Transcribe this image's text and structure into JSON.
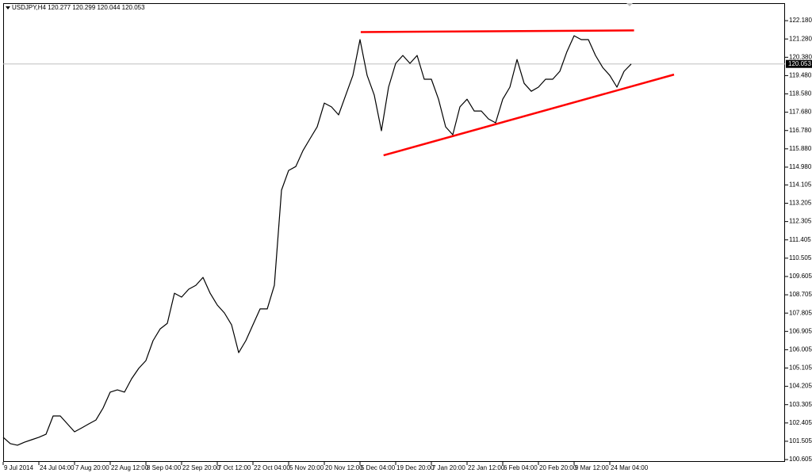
{
  "chart_data": {
    "type": "line",
    "title": "USDJPY,H4 120.277 120.299 120.044 120.053",
    "categories": [
      "9 Jul 2014",
      null,
      null,
      null,
      null,
      "24 Jul 04:00",
      null,
      null,
      null,
      null,
      "7 Aug 20:00",
      null,
      null,
      null,
      null,
      "22 Aug 12:00",
      null,
      null,
      null,
      null,
      "8 Sep 04:00",
      null,
      null,
      null,
      null,
      "22 Sep 20:00",
      null,
      null,
      null,
      null,
      "7 Oct 12:00",
      null,
      null,
      null,
      null,
      "22 Oct 04:00",
      null,
      null,
      null,
      null,
      "5 Nov 20:00",
      null,
      null,
      null,
      null,
      "20 Nov 12:00",
      null,
      null,
      null,
      null,
      "5 Dec 04:00",
      null,
      null,
      null,
      null,
      "19 Dec 20:00",
      null,
      null,
      null,
      null,
      "7 Jan 20:00",
      null,
      null,
      null,
      null,
      "22 Jan 12:00",
      null,
      null,
      null,
      null,
      "6 Feb 04:00",
      null,
      null,
      null,
      null,
      "20 Feb 20:00",
      null,
      null,
      null,
      null,
      "9 Mar 12:00",
      null,
      null,
      null,
      null,
      "24 Mar 04:00",
      null,
      null,
      null
    ],
    "series": [
      {
        "name": "USDJPY,H4",
        "color": "#000000",
        "values": [
          101.7,
          101.39,
          101.31,
          101.46,
          101.58,
          101.7,
          101.85,
          102.75,
          102.75,
          102.36,
          101.97,
          102.16,
          102.36,
          102.55,
          103.14,
          103.92,
          104.03,
          103.92,
          104.58,
          105.09,
          105.47,
          106.45,
          107.03,
          107.3,
          108.78,
          108.59,
          108.98,
          109.17,
          109.56,
          108.78,
          108.2,
          107.81,
          107.23,
          105.86,
          106.45,
          107.23,
          108.01,
          108.01,
          109.17,
          113.85,
          114.82,
          115.01,
          115.79,
          116.38,
          116.96,
          118.13,
          117.94,
          117.55,
          118.52,
          119.49,
          121.25,
          119.49,
          118.52,
          116.77,
          118.91,
          120.08,
          120.47,
          120.08,
          120.47,
          119.3,
          119.3,
          118.32,
          116.96,
          116.57,
          117.94,
          118.32,
          117.74,
          117.74,
          117.35,
          117.16,
          118.32,
          118.91,
          120.27,
          119.1,
          118.71,
          118.91,
          119.3,
          119.3,
          119.69,
          120.66,
          121.44,
          121.25,
          121.25,
          120.47,
          119.88,
          119.49,
          118.91,
          119.69,
          120.05
        ]
      }
    ],
    "ylim": [
      100.49,
      123.04
    ],
    "yticks": [
      {
        "value": 122.18,
        "label": "122.180"
      },
      {
        "value": 121.28,
        "label": "121.280"
      },
      {
        "value": 120.38,
        "label": "120.380"
      },
      {
        "value": 119.48,
        "label": "119.480"
      },
      {
        "value": 118.58,
        "label": "118.580"
      },
      {
        "value": 117.68,
        "label": "117.680"
      },
      {
        "value": 116.78,
        "label": "116.780"
      },
      {
        "value": 115.88,
        "label": "115.880"
      },
      {
        "value": 114.98,
        "label": "114.980"
      },
      114.105,
      113.205,
      112.305,
      111.405,
      110.505,
      109.605,
      108.705,
      107.805,
      106.905,
      106.005,
      105.105,
      104.205,
      103.305,
      102.405,
      101.505,
      100.605
    ],
    "last_price": 120.053,
    "trendlines": [
      {
        "color": "#ff0000",
        "x": [
          50.1,
          88.4
        ],
        "y": [
          121.62,
          121.7
        ]
      },
      {
        "color": "#ff0000",
        "x": [
          53.3,
          94.0
        ],
        "y": [
          115.56,
          119.53
        ]
      }
    ],
    "grid": false
  }
}
